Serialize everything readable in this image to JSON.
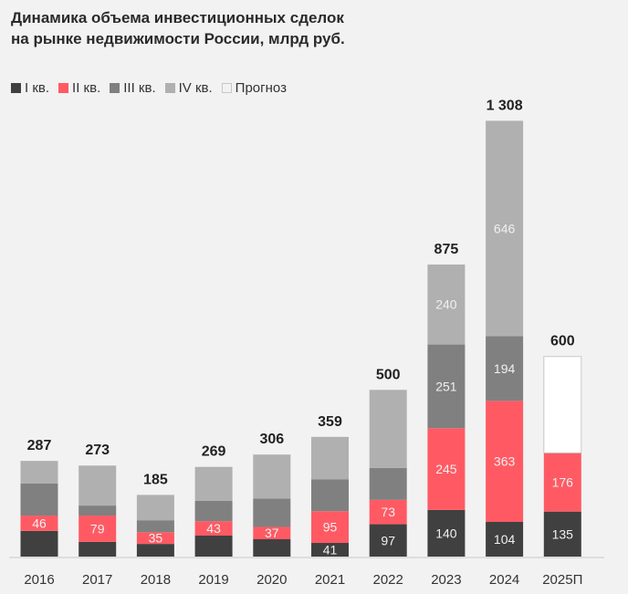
{
  "chart_data": {
    "type": "bar",
    "stacked": true,
    "title": "Динамика объема инвестиционных сделок на рынке недвижимости России, млрд руб.",
    "title_lines": [
      "Динамика объема инвестиционных сделок",
      "на рынке недвижимости России, млрд руб."
    ],
    "categories": [
      "2016",
      "2017",
      "2018",
      "2019",
      "2020",
      "2021",
      "2022",
      "2023",
      "2024",
      "2025П"
    ],
    "totals": [
      "287",
      "273",
      "185",
      "269",
      "306",
      "359",
      "500",
      "875",
      "1 308",
      "600"
    ],
    "total_values": [
      287,
      273,
      185,
      269,
      306,
      359,
      500,
      875,
      1308,
      600
    ],
    "series": [
      {
        "name": "I кв.",
        "color": "#404040",
        "values": [
          77,
          44,
          38,
          63,
          52,
          41,
          97,
          140,
          104,
          135
        ],
        "labeled": [
          false,
          false,
          false,
          false,
          false,
          true,
          true,
          true,
          true,
          true
        ]
      },
      {
        "name": "II кв.",
        "color": "#ff5a64",
        "values": [
          46,
          79,
          35,
          43,
          37,
          95,
          73,
          245,
          363,
          176
        ],
        "labeled": [
          true,
          true,
          true,
          true,
          true,
          true,
          true,
          true,
          true,
          true
        ]
      },
      {
        "name": "III кв.",
        "color": "#808080",
        "values": [
          96,
          30,
          36,
          61,
          85,
          96,
          96,
          251,
          194,
          0
        ],
        "labeled": [
          false,
          false,
          false,
          false,
          false,
          false,
          false,
          true,
          true,
          false
        ]
      },
      {
        "name": "IV кв.",
        "color": "#b0b0b0",
        "values": [
          68,
          120,
          76,
          102,
          132,
          127,
          234,
          240,
          646,
          0
        ],
        "labeled": [
          false,
          false,
          false,
          false,
          false,
          false,
          false,
          true,
          true,
          false
        ]
      },
      {
        "name": "Прогноз",
        "color": "#ffffff",
        "values": [
          0,
          0,
          0,
          0,
          0,
          0,
          0,
          0,
          0,
          289
        ],
        "labeled": [
          false,
          false,
          false,
          false,
          false,
          false,
          false,
          false,
          false,
          false
        ]
      }
    ],
    "xlabel": "",
    "ylabel": "",
    "ylim": [
      0,
      1308
    ],
    "grid": false,
    "legend": "top-left"
  }
}
